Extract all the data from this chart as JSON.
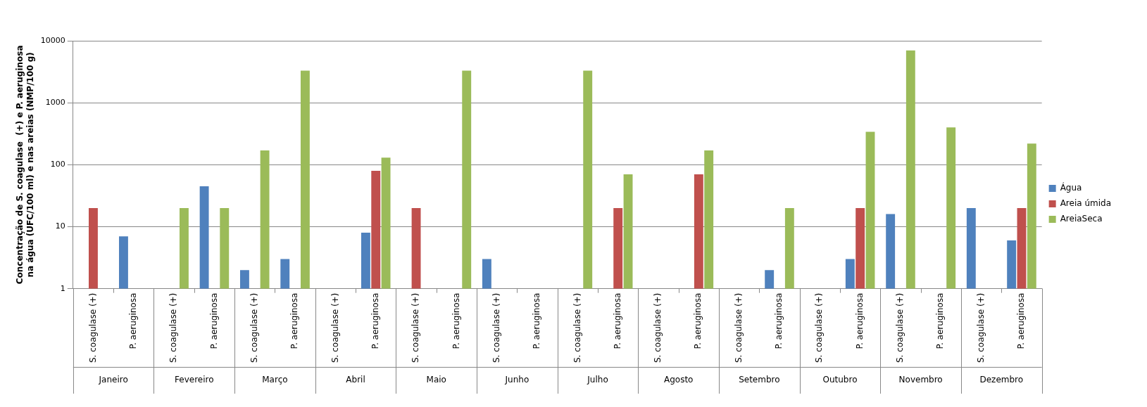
{
  "chart_data": {
    "type": "bar",
    "ylabel": "Concentração de S. coagulase  (+) e P. aeruginosa\nna água (UFC/100 ml) e nas areias (NMP/100 g)",
    "categories": [
      "S. coagulase (+)",
      "P. aeruginosa",
      "S. coagulase (+)",
      "P. aeruginosa",
      "S. coagulase (+)",
      "P. aeruginosa",
      "S. coagulase (+)",
      "P. aeruginosa",
      "S. coagulase (+)",
      "P. aeruginosa",
      "S. coagulase (+)",
      "P. aeruginosa",
      "S. coagulase (+)",
      "P. aeruginosa",
      "S. coagulase (+)",
      "P. aeruginosa",
      "S. coagulase (+)",
      "P. aeruginosa",
      "S. coagulase (+)",
      "P. aeruginosa",
      "S. coagulase (+)",
      "P. aeruginosa",
      "S. coagulase (+)",
      "P. aeruginosa"
    ],
    "annotations": [
      "Janeiro",
      "Fevereiro",
      "Março",
      "Abril",
      "Maio",
      "Junho",
      "Julho",
      "Agosto",
      "Setembro",
      "Outubro",
      "Novembro",
      "Dezembro"
    ],
    "series": [
      {
        "name": "Água",
        "color": "#4f81bd",
        "values": [
          null,
          7,
          null,
          45,
          2,
          3,
          null,
          8,
          null,
          null,
          3,
          null,
          null,
          null,
          null,
          null,
          null,
          2,
          null,
          3,
          16,
          null,
          20,
          6
        ]
      },
      {
        "name": "Areia úmida",
        "color": "#c0504d",
        "values": [
          20,
          null,
          null,
          null,
          null,
          null,
          null,
          80,
          20,
          null,
          null,
          null,
          null,
          20,
          null,
          70,
          null,
          null,
          null,
          20,
          null,
          null,
          null,
          20
        ]
      },
      {
        "name": "AreiaSeca",
        "color": "#9bbb59",
        "values": [
          null,
          null,
          20,
          20,
          170,
          3300,
          null,
          130,
          null,
          3300,
          null,
          null,
          3300,
          70,
          null,
          170,
          null,
          20,
          null,
          340,
          7000,
          400,
          null,
          220
        ]
      }
    ],
    "log": "y",
    "ylim": [
      1,
      10000
    ],
    "yticks": [
      1,
      10,
      100,
      1000,
      10000
    ],
    "grid": "y",
    "legend": "right"
  }
}
